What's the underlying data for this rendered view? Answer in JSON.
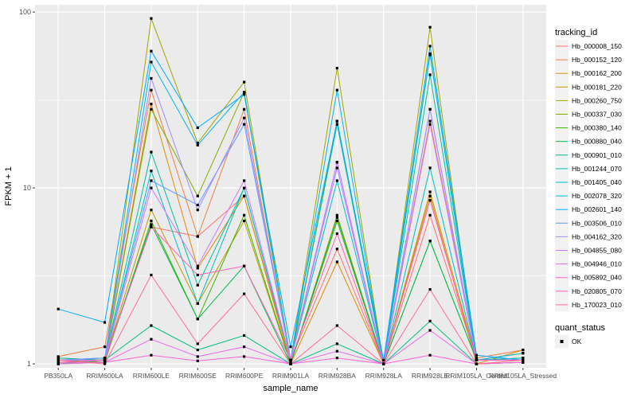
{
  "chart_data": {
    "type": "line",
    "title": "",
    "xlabel": "sample_name",
    "ylabel": "FPKM + 1",
    "y_scale": "log10",
    "ylim": [
      0.95,
      110
    ],
    "y_ticks": [
      1,
      10,
      100
    ],
    "y_tick_labels": [
      "1",
      "10",
      "100"
    ],
    "grid": true,
    "legend_position": "right",
    "categories": [
      "PB350LA",
      "RRIM600LA",
      "RRIM600LE",
      "RRIM600SE",
      "RRIM600PE",
      "RRIM901LA",
      "RRIM928BA",
      "RRIM928LA",
      "RRIM928LE",
      "RRIM105LA_Control",
      "RRIM105LA_Stressed"
    ],
    "category_labels": [
      "PB350LA",
      "RRIM600LA",
      "RRIM600LE",
      "RRIM600SE",
      "RRIM600PE",
      "RRIM901LA",
      "RRIM928BA",
      "RRIM928LA",
      "RRIM928LE",
      "RRIM105LA_Control",
      "RRIM105LA_Stressed"
    ],
    "legend_title": "tracking_id",
    "series": [
      {
        "name": "Hb_000008_150",
        "color": "#F8766D",
        "values": [
          1.05,
          1.08,
          6.0,
          5.3,
          9.0,
          1.05,
          4.5,
          1.0,
          7.0,
          1.05,
          1.05
        ]
      },
      {
        "name": "Hb_000152_120",
        "color": "#EE8043",
        "values": [
          1.1,
          1.25,
          36,
          5.3,
          28,
          1.02,
          24,
          1.0,
          24,
          1.08,
          1.2
        ]
      },
      {
        "name": "Hb_000162_200",
        "color": "#DE8C00",
        "values": [
          1.0,
          1.05,
          30,
          3.5,
          9.0,
          1.0,
          3.8,
          1.0,
          9.0,
          1.0,
          1.2
        ]
      },
      {
        "name": "Hb_000181_220",
        "color": "#C09B00",
        "values": [
          1.08,
          1.05,
          7.5,
          2.2,
          6.5,
          1.0,
          7.0,
          1.0,
          9.5,
          1.05,
          1.15
        ]
      },
      {
        "name": "Hb_000260_750",
        "color": "#A3A500",
        "values": [
          1.0,
          1.02,
          92,
          18,
          40,
          1.05,
          48,
          1.0,
          82,
          1.0,
          1.02
        ]
      },
      {
        "name": "Hb_000337_030",
        "color": "#7CAE00",
        "values": [
          1.02,
          1.05,
          28,
          9.0,
          35,
          1.05,
          24,
          1.0,
          58,
          1.05,
          1.08
        ]
      },
      {
        "name": "Hb_000380_140",
        "color": "#39B600",
        "values": [
          1.05,
          1.02,
          6.5,
          1.8,
          7.0,
          1.0,
          6.5,
          1.0,
          5.0,
          1.05,
          1.05
        ]
      },
      {
        "name": "Hb_000880_040",
        "color": "#00BB4E",
        "values": [
          1.0,
          1.05,
          6.2,
          1.8,
          3.6,
          1.0,
          6.8,
          1.0,
          5.0,
          1.05,
          1.08
        ]
      },
      {
        "name": "Hb_000901_010",
        "color": "#00BF7D",
        "values": [
          1.05,
          1.05,
          1.65,
          1.2,
          1.45,
          1.0,
          1.3,
          1.0,
          1.75,
          1.0,
          1.02
        ]
      },
      {
        "name": "Hb_001244_070",
        "color": "#00C1A3",
        "values": [
          1.08,
          1.05,
          16,
          2.8,
          10,
          1.05,
          23,
          1.0,
          44,
          1.05,
          1.05
        ]
      },
      {
        "name": "Hb_001405_040",
        "color": "#00BFC4",
        "values": [
          1.05,
          1.05,
          12.5,
          2.2,
          10,
          1.05,
          11,
          1.0,
          13,
          1.05,
          1.08
        ]
      },
      {
        "name": "Hb_002078_320",
        "color": "#00B8E5",
        "values": [
          1.05,
          1.08,
          52,
          17.5,
          35,
          1.05,
          36,
          1.0,
          57,
          1.05,
          1.15
        ]
      },
      {
        "name": "Hb_002601_140",
        "color": "#00ABFD",
        "values": [
          2.05,
          1.72,
          60,
          22,
          34,
          1.25,
          24,
          1.05,
          64,
          1.12,
          1.05
        ]
      },
      {
        "name": "Hb_003506_010",
        "color": "#619CFF",
        "values": [
          1.05,
          1.08,
          11,
          8.0,
          23,
          1.05,
          14,
          1.0,
          28,
          1.05,
          1.05
        ]
      },
      {
        "name": "Hb_004162_320",
        "color": "#A58AFF",
        "values": [
          1.05,
          1.05,
          42,
          7.5,
          25,
          1.05,
          13,
          1.0,
          28,
          1.05,
          1.05
        ]
      },
      {
        "name": "Hb_004855_080",
        "color": "#D078FF",
        "values": [
          1.05,
          1.05,
          10,
          3.6,
          11,
          1.05,
          14,
          1.0,
          23,
          1.05,
          1.05
        ]
      },
      {
        "name": "Hb_004946_010",
        "color": "#EC69EF",
        "values": [
          1.0,
          1.02,
          1.38,
          1.1,
          1.25,
          1.0,
          1.18,
          1.0,
          1.55,
          1.0,
          1.02
        ]
      },
      {
        "name": "Hb_005892_040",
        "color": "#FB61D7",
        "values": [
          1.02,
          1.02,
          1.12,
          1.04,
          1.1,
          1.0,
          1.08,
          1.0,
          1.12,
          1.0,
          1.02
        ]
      },
      {
        "name": "Hb_020805_070",
        "color": "#FF62BC",
        "values": [
          1.02,
          1.05,
          6.0,
          3.2,
          3.6,
          1.05,
          5.5,
          1.0,
          8.5,
          1.05,
          1.05
        ]
      },
      {
        "name": "Hb_170023_010",
        "color": "#FF6C90",
        "values": [
          1.05,
          1.0,
          3.2,
          1.3,
          2.5,
          1.0,
          1.65,
          1.0,
          2.65,
          1.0,
          1.05
        ]
      }
    ],
    "shape_legend": {
      "title": "quant_status",
      "items": [
        {
          "label": "OK",
          "symbol": "square",
          "color": "#000000"
        }
      ]
    }
  }
}
